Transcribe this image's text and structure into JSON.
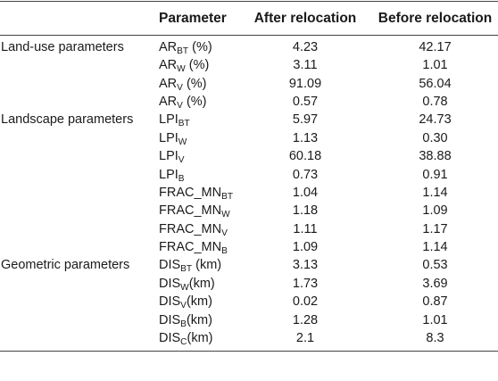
{
  "table": {
    "headers": {
      "group": "",
      "parameter": "Parameter",
      "after": "After relocation",
      "before": "Before relocation"
    },
    "rows": [
      {
        "group": "Land-use parameters",
        "param": {
          "base": "AR",
          "sub": "BT",
          "suffix": " (%)"
        },
        "after": "4.23",
        "before": "42.17"
      },
      {
        "group": "",
        "param": {
          "base": "AR",
          "sub": "W",
          "suffix": " (%)"
        },
        "after": "3.11",
        "before": "1.01"
      },
      {
        "group": "",
        "param": {
          "base": "AR",
          "sub": "V",
          "suffix": " (%)"
        },
        "after": "91.09",
        "before": "56.04"
      },
      {
        "group": "",
        "param": {
          "base": "AR",
          "sub": "V",
          "suffix": " (%)"
        },
        "after": "0.57",
        "before": "0.78"
      },
      {
        "group": "Landscape parameters",
        "param": {
          "base": "LPI",
          "sub": "BT",
          "suffix": ""
        },
        "after": "5.97",
        "before": "24.73"
      },
      {
        "group": "",
        "param": {
          "base": "LPI",
          "sub": "W",
          "suffix": ""
        },
        "after": "1.13",
        "before": "0.30"
      },
      {
        "group": "",
        "param": {
          "base": "LPI",
          "sub": "V",
          "suffix": ""
        },
        "after": "60.18",
        "before": "38.88"
      },
      {
        "group": "",
        "param": {
          "base": "LPI",
          "sub": "B",
          "suffix": ""
        },
        "after": "0.73",
        "before": "0.91"
      },
      {
        "group": "",
        "param": {
          "base": "FRAC_MN",
          "sub": "BT",
          "suffix": ""
        },
        "after": "1.04",
        "before": "1.14"
      },
      {
        "group": "",
        "param": {
          "base": "FRAC_MN",
          "sub": "W",
          "suffix": ""
        },
        "after": "1.18",
        "before": "1.09"
      },
      {
        "group": "",
        "param": {
          "base": "FRAC_MN",
          "sub": "V",
          "suffix": ""
        },
        "after": "1.11",
        "before": "1.17"
      },
      {
        "group": "",
        "param": {
          "base": "FRAC_MN",
          "sub": "B",
          "suffix": ""
        },
        "after": "1.09",
        "before": "1.14"
      },
      {
        "group": "Geometric parameters",
        "param": {
          "base": "DIS",
          "sub": "BT",
          "suffix": " (km)"
        },
        "after": "3.13",
        "before": "0.53"
      },
      {
        "group": "",
        "param": {
          "base": "DIS",
          "sub": "W",
          "suffix": "(km)"
        },
        "after": "1.73",
        "before": "3.69"
      },
      {
        "group": "",
        "param": {
          "base": "DIS",
          "sub": "V",
          "suffix": "(km)"
        },
        "after": "0.02",
        "before": "0.87"
      },
      {
        "group": "",
        "param": {
          "base": "DIS",
          "sub": "B",
          "suffix": "(km)"
        },
        "after": "1.28",
        "before": "1.01"
      },
      {
        "group": "",
        "param": {
          "base": "DIS",
          "sub": "C",
          "suffix": "(km)"
        },
        "after": "2.1",
        "before": "8.3"
      }
    ]
  }
}
